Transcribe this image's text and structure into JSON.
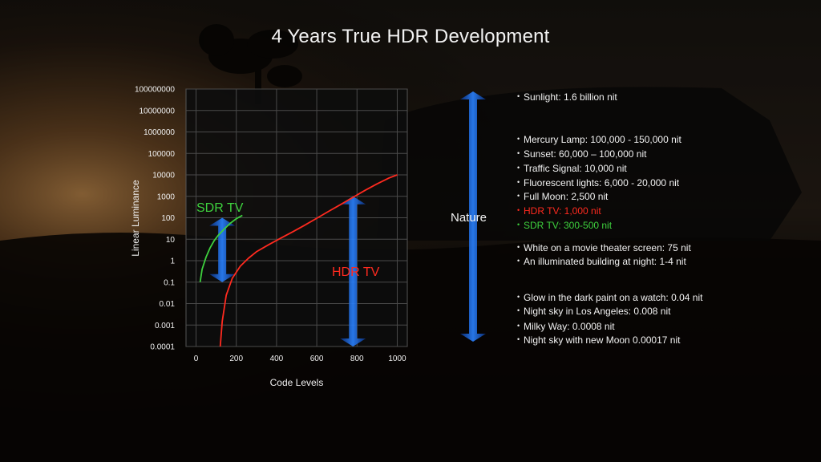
{
  "slide": {
    "title": "4 Years True HDR Development"
  },
  "colors": {
    "sdr": "#3ed13e",
    "hdr": "#ff2a1f",
    "arrow": "#1e6fe0",
    "text": "#f2f2f2",
    "plot_bg": "#0d0d0d"
  },
  "chart_data": {
    "type": "line",
    "xlabel": "Code Levels",
    "ylabel": "Linear Luminance",
    "xlim": [
      -50,
      1050
    ],
    "yscale": "log",
    "ylim": [
      0.0001,
      100000000
    ],
    "grid": true,
    "x_ticks": [
      "0",
      "200",
      "400",
      "600",
      "800",
      "1000"
    ],
    "y_ticks": [
      "100000000",
      "10000000",
      "1000000",
      "100000",
      "10000",
      "1000",
      "100",
      "10",
      "1",
      "0.1",
      "0.01",
      "0.001",
      "0.0001"
    ],
    "series": [
      {
        "name": "SDR TV",
        "color": "#3ed13e",
        "x": [
          20,
          30,
          50,
          70,
          90,
          110,
          140,
          170,
          200,
          230
        ],
        "y": [
          0.1,
          0.4,
          1.5,
          4,
          8.5,
          15,
          30,
          55,
          90,
          130
        ]
      },
      {
        "name": "HDR TV",
        "color": "#ff2a1f",
        "x": [
          120,
          130,
          150,
          180,
          220,
          260,
          300,
          360,
          420,
          480,
          540,
          600,
          660,
          720,
          780,
          840,
          900,
          960,
          1000
        ],
        "y": [
          0.0001,
          0.0015,
          0.025,
          0.15,
          0.55,
          1.3,
          2.6,
          5.5,
          11,
          22,
          45,
          95,
          200,
          420,
          900,
          1900,
          3800,
          7200,
          10000
        ]
      }
    ],
    "annotations": [
      {
        "text": "SDR TV",
        "color": "#3ed13e"
      },
      {
        "text": "HDR TV",
        "color": "#ff2a1f"
      }
    ],
    "ranges": [
      {
        "name": "SDR TV range",
        "y_from": 0.1,
        "y_to": 100
      },
      {
        "name": "HDR TV range",
        "y_from": 0.0001,
        "y_to": 1000
      }
    ]
  },
  "nature": {
    "label": "Nature",
    "y_from": 0.0001,
    "y_to": 1600000000
  },
  "facts": [
    {
      "text": "Sunlight: 1.6 billion nit",
      "color": "#f2f2f2"
    },
    {
      "text": "Mercury Lamp: 100,000 - 150,000 nit",
      "color": "#f2f2f2"
    },
    {
      "text": "Sunset: 60,000 – 100,000 nit",
      "color": "#f2f2f2"
    },
    {
      "text": "Traffic Signal: 10,000 nit",
      "color": "#f2f2f2"
    },
    {
      "text": "Fluorescent lights: 6,000 - 20,000 nit",
      "color": "#f2f2f2"
    },
    {
      "text": "Full Moon: 2,500 nit",
      "color": "#f2f2f2"
    },
    {
      "text": "HDR TV: 1,000 nit",
      "color": "#ff2a1f"
    },
    {
      "text": "SDR TV: 300-500 nit",
      "color": "#3ed13e"
    },
    {
      "text": "White on a movie theater screen: 75 nit",
      "color": "#f2f2f2"
    },
    {
      "text": "An illuminated building at night: 1-4 nit",
      "color": "#f2f2f2"
    },
    {
      "text": "Glow in the dark paint on a watch: 0.04 nit",
      "color": "#f2f2f2"
    },
    {
      "text": "Night sky in Los Angeles: 0.008 nit",
      "color": "#f2f2f2"
    },
    {
      "text": "Milky Way: 0.0008 nit",
      "color": "#f2f2f2"
    },
    {
      "text": "Night sky with new Moon 0.00017 nit",
      "color": "#f2f2f2"
    }
  ]
}
